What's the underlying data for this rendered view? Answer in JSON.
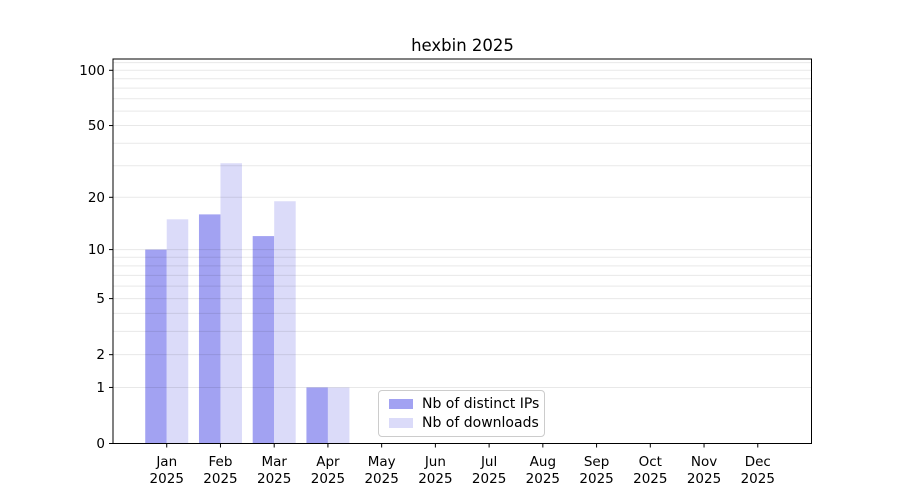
{
  "chart_data": {
    "type": "bar",
    "title": "hexbin 2025",
    "x_categories": [
      {
        "month": "Jan",
        "year": "2025"
      },
      {
        "month": "Feb",
        "year": "2025"
      },
      {
        "month": "Mar",
        "year": "2025"
      },
      {
        "month": "Apr",
        "year": "2025"
      },
      {
        "month": "May",
        "year": "2025"
      },
      {
        "month": "Jun",
        "year": "2025"
      },
      {
        "month": "Jul",
        "year": "2025"
      },
      {
        "month": "Aug",
        "year": "2025"
      },
      {
        "month": "Sep",
        "year": "2025"
      },
      {
        "month": "Oct",
        "year": "2025"
      },
      {
        "month": "Nov",
        "year": "2025"
      },
      {
        "month": "Dec",
        "year": "2025"
      }
    ],
    "series": [
      {
        "name": "Nb of distinct IPs",
        "color": "#a2a2f2",
        "values": [
          10,
          16,
          12,
          1,
          0,
          0,
          0,
          0,
          0,
          0,
          0,
          0
        ]
      },
      {
        "name": "Nb of downloads",
        "color": "#dbdbf9",
        "values": [
          15,
          31,
          19,
          1,
          0,
          0,
          0,
          0,
          0,
          0,
          0,
          0
        ]
      }
    ],
    "y_scale": "log10(1+x)",
    "y_axis_ticks": [
      0,
      1,
      2,
      5,
      10,
      20,
      50,
      100
    ],
    "y_gridline_values": [
      1,
      2,
      3,
      4,
      5,
      6,
      7,
      8,
      9,
      10,
      20,
      30,
      40,
      50,
      60,
      70,
      80,
      90,
      100,
      110
    ],
    "ylim": [
      0,
      115
    ],
    "xlabel": "",
    "ylabel": "",
    "grid": true,
    "legend_position": "lower center"
  },
  "colors": {
    "background": "#ffffff",
    "spine": "#000000",
    "grid": "rgba(0,0,0,0.09)",
    "tick_label": "#000000",
    "legend_border": "#cccccc"
  }
}
